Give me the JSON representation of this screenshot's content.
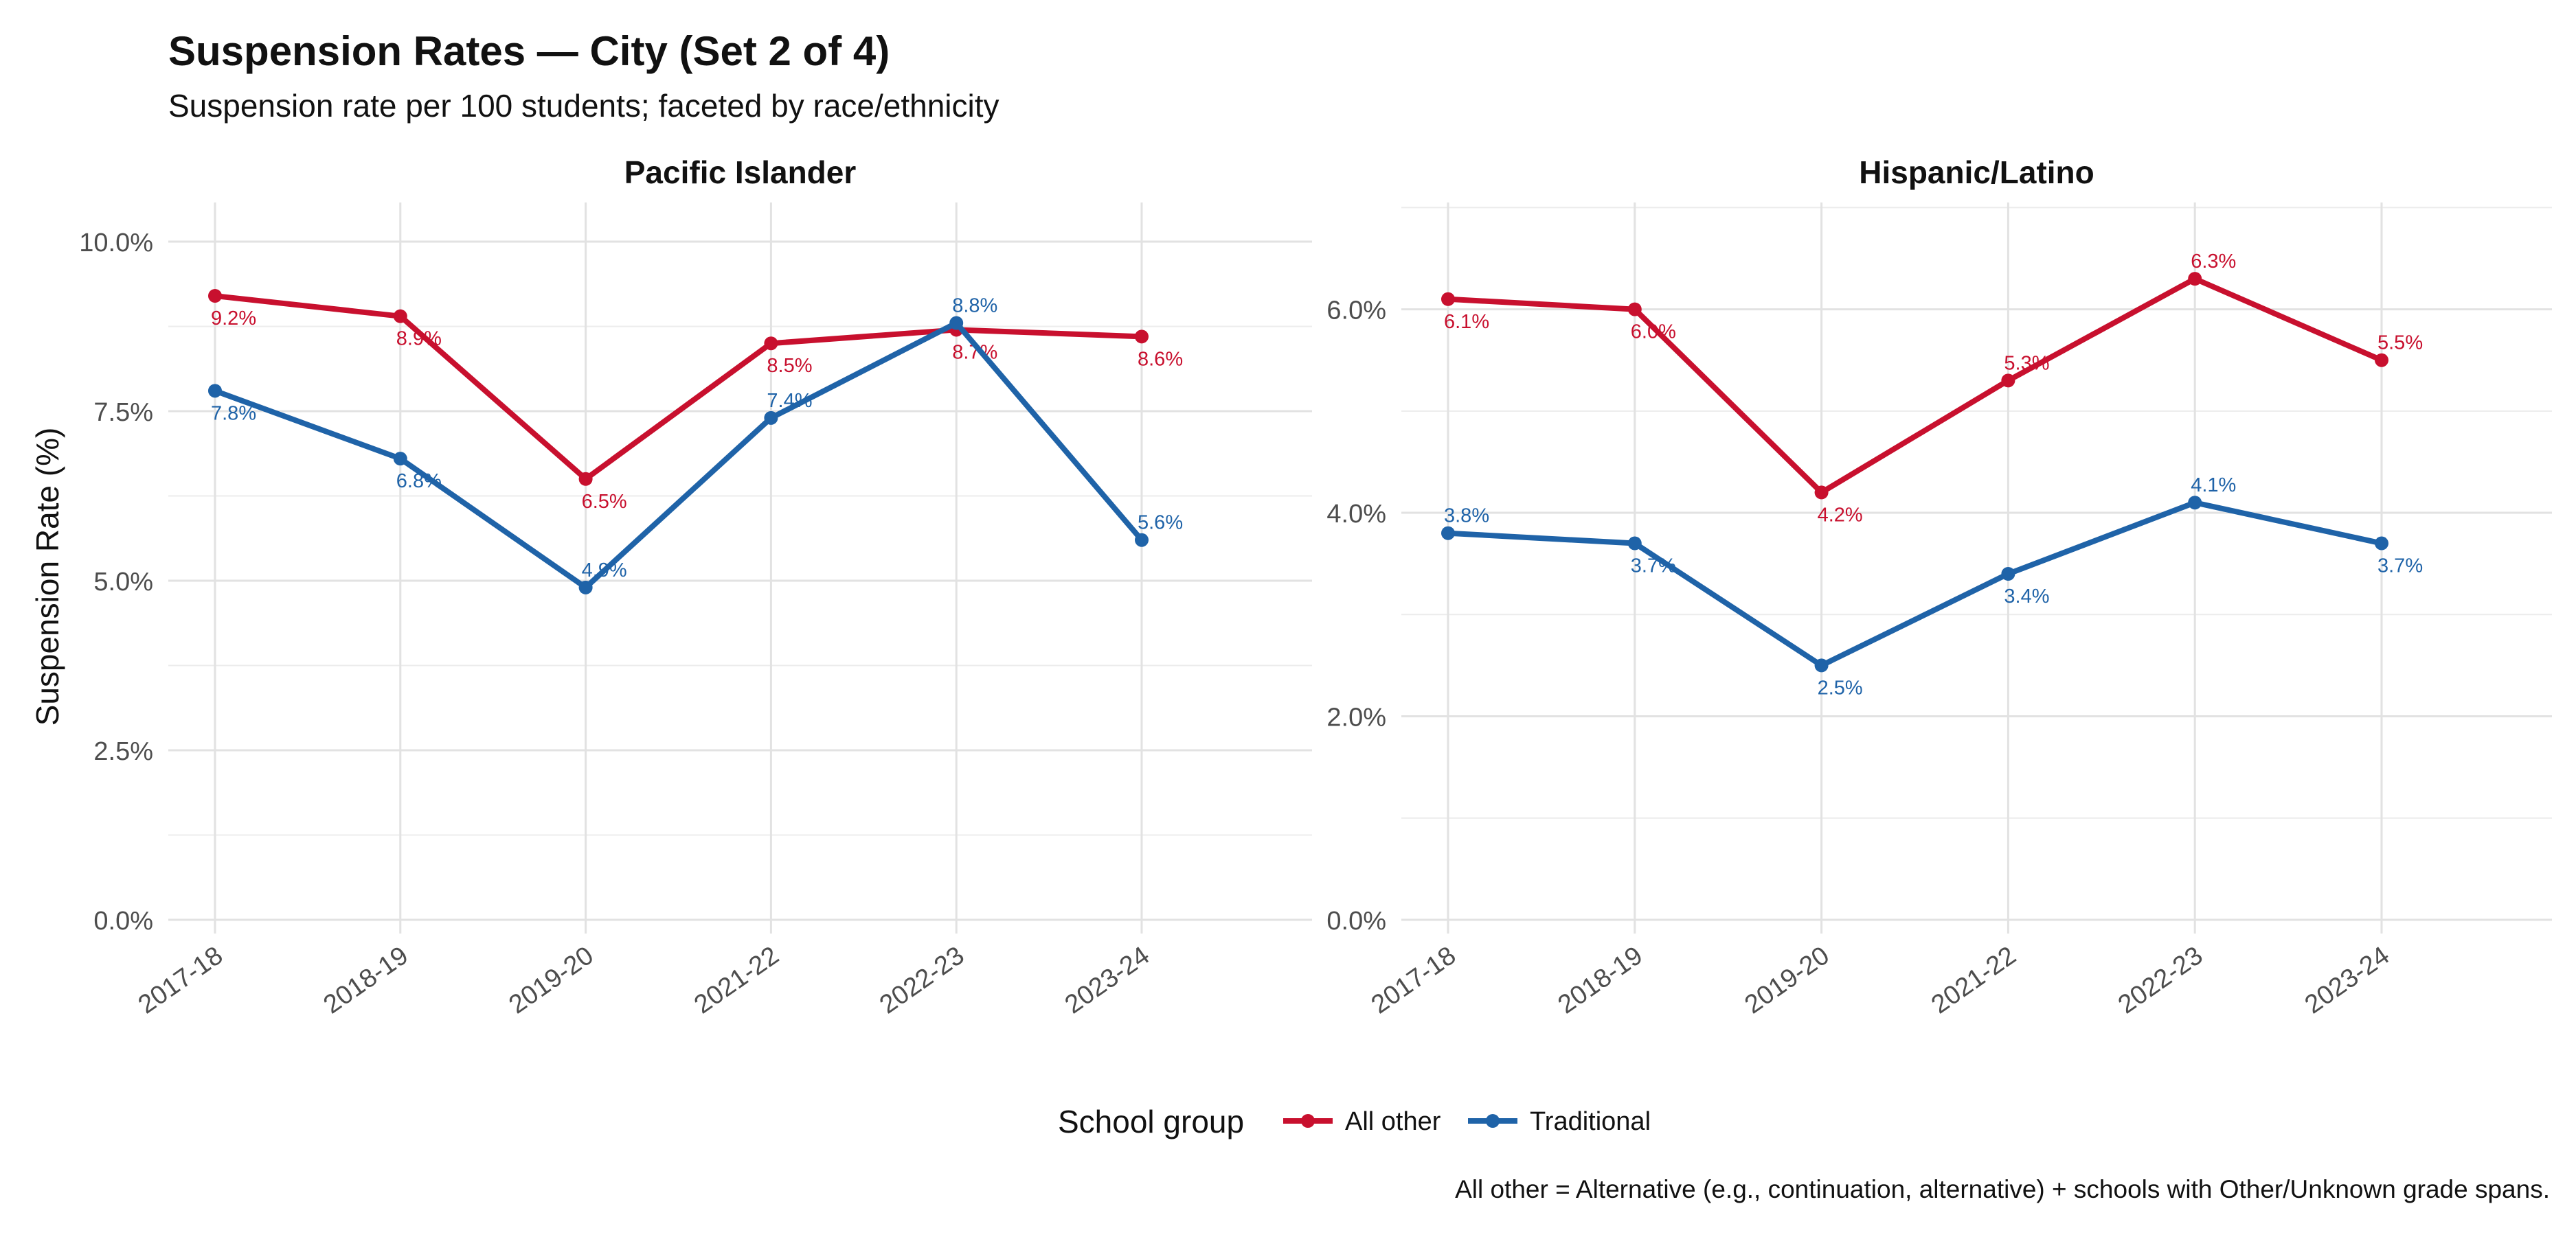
{
  "title": "Suspension Rates — City (Set 2 of 4)",
  "subtitle": "Suspension rate per 100 students; faceted by race/ethnicity",
  "ylabel": "Suspension Rate (%)",
  "caption": "All other = Alternative (e.g., continuation, alternative) + schools with Other/Unknown grade spans.",
  "legend": {
    "title": "School group",
    "placement": "bottom",
    "items": [
      {
        "name": "All other",
        "color": "#C8102E"
      },
      {
        "name": "Traditional",
        "color": "#1F63A8"
      }
    ]
  },
  "chart_data": [
    {
      "type": "line",
      "facet": "Pacific Islander",
      "categories": [
        "2017-18",
        "2018-19",
        "2019-20",
        "2021-22",
        "2022-23",
        "2023-24"
      ],
      "ylim": [
        0,
        10
      ],
      "yticks": [
        0,
        2.5,
        5,
        7.5,
        10
      ],
      "ytick_labels": [
        "0.0%",
        "2.5%",
        "5.0%",
        "7.5%",
        "10.0%"
      ],
      "grid": true,
      "series": [
        {
          "name": "All other",
          "color": "#C8102E",
          "values": [
            9.2,
            8.9,
            6.5,
            8.5,
            8.7,
            8.6
          ],
          "labels": [
            "9.2%",
            "8.9%",
            "6.5%",
            "8.5%",
            "8.7%",
            "8.6%"
          ],
          "label_pos": [
            "below",
            "below",
            "below",
            "below",
            "below",
            "below"
          ]
        },
        {
          "name": "Traditional",
          "color": "#1F63A8",
          "values": [
            7.8,
            6.8,
            4.9,
            7.4,
            8.8,
            5.6
          ],
          "labels": [
            "7.8%",
            "6.8%",
            "4.9%",
            "7.4%",
            "8.8%",
            "5.6%"
          ],
          "label_pos": [
            "below",
            "below",
            "above",
            "above",
            "above",
            "above"
          ]
        }
      ]
    },
    {
      "type": "line",
      "facet": "Hispanic/Latino",
      "categories": [
        "2017-18",
        "2018-19",
        "2019-20",
        "2021-22",
        "2022-23",
        "2023-24"
      ],
      "ylim": [
        0,
        7
      ],
      "yticks": [
        0,
        2,
        4,
        6
      ],
      "ytick_labels": [
        "0.0%",
        "2.0%",
        "4.0%",
        "6.0%"
      ],
      "grid": true,
      "series": [
        {
          "name": "All other",
          "color": "#C8102E",
          "values": [
            6.1,
            6.0,
            4.2,
            5.3,
            6.3,
            5.5
          ],
          "labels": [
            "6.1%",
            "6.0%",
            "4.2%",
            "5.3%",
            "6.3%",
            "5.5%"
          ],
          "label_pos": [
            "below",
            "below",
            "below",
            "above",
            "above",
            "above"
          ]
        },
        {
          "name": "Traditional",
          "color": "#1F63A8",
          "values": [
            3.8,
            3.7,
            2.5,
            3.4,
            4.1,
            3.7
          ],
          "labels": [
            "3.8%",
            "3.7%",
            "2.5%",
            "3.4%",
            "4.1%",
            "3.7%"
          ],
          "label_pos": [
            "above",
            "below",
            "below",
            "below",
            "above",
            "below"
          ]
        }
      ]
    }
  ]
}
